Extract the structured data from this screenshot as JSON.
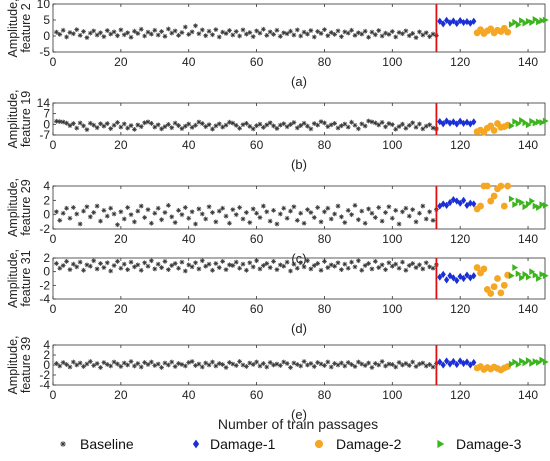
{
  "figure": {
    "xlabel": "Number of  train passages",
    "legend": {
      "placement": "bottom",
      "entries": [
        {
          "label": "Baseline",
          "marker": "star",
          "color": "#333333"
        },
        {
          "label": "Damage-1",
          "marker": "diamond",
          "color": "#1a2fd6"
        },
        {
          "label": "Damage-2",
          "marker": "circle",
          "color": "#f5a623"
        },
        {
          "label": "Damage-3",
          "marker": "triangle-right",
          "color": "#3cb41e"
        }
      ]
    },
    "colors": {
      "baseline": "#333333",
      "damage1": "#1a2fd6",
      "damage2": "#f5a623",
      "damage3": "#3cb41e",
      "divider": "#e01010"
    }
  },
  "chart_data": [
    {
      "type": "scatter",
      "panel": "(a)",
      "ylabel": "Amplitude, feature 2",
      "ylabel_lines": [
        "Amplitude,",
        "feature 2"
      ],
      "xlim": [
        0,
        145
      ],
      "ylim": [
        -5,
        10
      ],
      "xticks": [
        0,
        20,
        40,
        60,
        80,
        100,
        120,
        140
      ],
      "yticks": [
        -5,
        0,
        5,
        10
      ],
      "divider_x": 113,
      "series": [
        {
          "name": "Baseline",
          "x_start": 1,
          "x_end": 113,
          "values": [
            1.2,
            0.5,
            1.8,
            -0.3,
            1.1,
            0.7,
            2.0,
            0.2,
            1.4,
            -0.5,
            0.9,
            1.6,
            0.3,
            1.0,
            -0.2,
            1.7,
            0.6,
            1.3,
            0.1,
            1.9,
            0.4,
            1.0,
            -0.4,
            1.5,
            0.8,
            2.1,
            0.0,
            1.2,
            0.6,
            1.8,
            0.3,
            1.4,
            -0.1,
            2.2,
            0.9,
            1.6,
            0.2,
            1.1,
            2.8,
            0.5,
            1.3,
            3.2,
            0.7,
            1.9,
            0.1,
            1.5,
            0.4,
            2.0,
            -0.3,
            1.2,
            0.8,
            1.7,
            0.3,
            1.4,
            0.0,
            1.9,
            0.6,
            1.1,
            -0.2,
            1.6,
            0.9,
            2.1,
            0.2,
            1.3,
            0.5,
            1.8,
            -0.1,
            1.0,
            0.7,
            1.5,
            0.3,
            1.9,
            0.0,
            1.2,
            0.6,
            1.7,
            -0.3,
            1.4,
            0.8,
            2.0,
            0.1,
            1.1,
            0.5,
            1.6,
            -0.2,
            1.3,
            0.9,
            1.8,
            0.2,
            1.0,
            0.6,
            1.5,
            -0.4,
            1.2,
            0.4,
            1.7,
            0.0,
            0.9,
            0.5,
            1.4,
            -0.3,
            1.1,
            0.7,
            1.6,
            0.1,
            0.8,
            -0.5,
            1.3,
            0.3,
            1.0,
            -0.2,
            0.6,
            0.2
          ]
        },
        {
          "name": "Damage-1",
          "x_start": 114,
          "x_end": 124,
          "values": [
            4.6,
            3.8,
            4.9,
            4.1,
            4.7,
            3.9,
            4.8,
            4.2,
            4.5,
            4.0,
            4.6
          ]
        },
        {
          "name": "Damage-2",
          "x_start": 125,
          "x_end": 134,
          "values": [
            1.0,
            2.0,
            0.8,
            1.6,
            2.2,
            1.0,
            1.8,
            1.4,
            2.4,
            1.2
          ]
        },
        {
          "name": "Damage-3",
          "x_start": 135,
          "x_end": 145,
          "values": [
            3.6,
            4.3,
            3.5,
            4.8,
            4.0,
            4.6,
            4.2,
            5.2,
            4.4,
            4.8,
            5.0
          ]
        }
      ]
    },
    {
      "type": "scatter",
      "panel": "(b)",
      "ylabel": "Amplitude, feature 19",
      "ylabel_lines": [
        "Amplitude,",
        "feature 19"
      ],
      "xlim": [
        0,
        145
      ],
      "ylim": [
        -7,
        14
      ],
      "xticks": [
        0,
        20,
        40,
        60,
        80,
        100,
        120,
        140
      ],
      "yticks": [
        -7,
        0,
        7,
        14
      ],
      "divider_x": 113,
      "series": [
        {
          "name": "Baseline",
          "x_start": 1,
          "x_end": 113,
          "values": [
            2.0,
            1.8,
            1.5,
            0.8,
            -0.8,
            0.5,
            -2.5,
            0.9,
            -1.0,
            -3.5,
            0.7,
            -0.5,
            -2.2,
            0.4,
            -1.2,
            0.5,
            -2.8,
            -0.6,
            1.2,
            -1.8,
            0.3,
            -2.5,
            -0.8,
            -3.3,
            -0.4,
            -1.5,
            1.0,
            1.6,
            0.6,
            -1.8,
            -0.3,
            -3.0,
            -1.5,
            0.0,
            -2.2,
            0.8,
            -0.8,
            -2.8,
            -1.2,
            0.2,
            -2.0,
            -0.6,
            1.5,
            0.5,
            -1.5,
            -0.2,
            -3.1,
            -1.0,
            0.3,
            -1.8,
            -0.5,
            1.4,
            0.8,
            -0.7,
            -2.6,
            -0.2,
            0.6,
            -1.3,
            -3.0,
            -0.9,
            0.1,
            -2.0,
            -0.4,
            1.0,
            -1.0,
            -2.7,
            -0.5,
            0.4,
            -1.6,
            -0.1,
            1.2,
            -2.3,
            -0.8,
            0.7,
            -1.2,
            -3.0,
            0.5,
            -0.5,
            1.8,
            0.9,
            -1.5,
            -0.3,
            0.6,
            -2.4,
            -0.9,
            0.2,
            -1.8,
            1.4,
            -0.6,
            -2.9,
            0.3,
            -1.1,
            2.2,
            1.6,
            0.9,
            -0.4,
            1.3,
            -1.6,
            0.5,
            -0.2,
            -3.2,
            -1.4,
            0.1,
            -2.6,
            -0.7,
            1.0,
            -1.9,
            0.2,
            -3.0,
            -1.2,
            -0.3,
            -2.4,
            -3.0
          ]
        },
        {
          "name": "Damage-1",
          "x_start": 114,
          "x_end": 124,
          "values": [
            1.8,
            0.4,
            2.2,
            0.8,
            1.6,
            0.2,
            2.0,
            0.6,
            1.4,
            0.3,
            1.6
          ]
        },
        {
          "name": "Damage-2",
          "x_start": 125,
          "x_end": 134,
          "values": [
            -4.8,
            -3.8,
            -5.2,
            -2.5,
            -1.0,
            -4.0,
            0.5,
            -2.0,
            -1.5,
            -0.5
          ]
        },
        {
          "name": "Damage-3",
          "x_start": 135,
          "x_end": 145,
          "values": [
            -1.0,
            1.8,
            0.5,
            2.6,
            1.0,
            -0.4,
            2.0,
            0.8,
            1.6,
            1.2,
            2.2
          ]
        }
      ]
    },
    {
      "type": "scatter",
      "panel": "(c)",
      "ylabel": "Amplitude, feature 29",
      "ylabel_lines": [
        "Amplitude,",
        "feature 29"
      ],
      "xlim": [
        0,
        145
      ],
      "ylim": [
        -2,
        4
      ],
      "xticks": [
        0,
        20,
        40,
        60,
        80,
        100,
        120,
        140
      ],
      "yticks": [
        -2,
        0,
        2,
        4
      ],
      "divider_x": 113,
      "series": [
        {
          "name": "Baseline",
          "x_start": 1,
          "x_end": 113,
          "values": [
            0.4,
            -0.8,
            0.2,
            0.9,
            -0.5,
            1.0,
            0.1,
            -1.3,
            0.5,
            1.1,
            -0.3,
            0.3,
            1.2,
            -0.9,
            0.6,
            -0.2,
            0.9,
            0.1,
            -1.4,
            0.4,
            -0.6,
            1.0,
            0.0,
            -1.0,
            0.5,
            1.2,
            -0.4,
            0.7,
            -1.2,
            0.2,
            0.9,
            -0.7,
            0.3,
            1.3,
            -0.3,
            -1.1,
            0.6,
            0.0,
            1.0,
            -0.5,
            0.4,
            -1.3,
            0.8,
            0.1,
            -0.6,
            1.1,
            0.3,
            -1.0,
            0.5,
            0.9,
            -0.2,
            -1.2,
            0.7,
            0.0,
            1.0,
            -0.6,
            0.3,
            -1.1,
            0.8,
            0.2,
            -0.4,
            1.2,
            0.4,
            -0.9,
            0.6,
            -1.3,
            0.1,
            0.9,
            -0.5,
            0.5,
            1.1,
            -0.8,
            0.2,
            -1.2,
            0.7,
            0.3,
            -0.4,
            1.0,
            -1.0,
            0.4,
            0.9,
            -0.6,
            0.1,
            1.2,
            -0.3,
            -1.1,
            0.6,
            0.0,
            1.3,
            -0.7,
            0.5,
            -1.2,
            0.8,
            0.2,
            -0.4,
            1.0,
            -0.9,
            0.3,
            1.1,
            -0.5,
            0.6,
            -1.3,
            0.4,
            0.9,
            -0.2,
            0.7,
            -1.0,
            0.2,
            1.2,
            -0.6,
            0.4,
            -0.8,
            0.7
          ]
        },
        {
          "name": "Damage-1",
          "x_start": 114,
          "x_end": 124,
          "values": [
            1.2,
            1.5,
            1.3,
            1.7,
            2.1,
            1.9,
            1.6,
            2.0,
            1.3,
            1.6,
            1.5
          ]
        },
        {
          "name": "Damage-2",
          "x_start": 125,
          "x_end": 134,
          "values": [
            0.8,
            1.2,
            4.5,
            4.0,
            1.9,
            2.6,
            3.6,
            4.2,
            1.2,
            4.5
          ]
        },
        {
          "name": "Damage-3",
          "x_start": 135,
          "x_end": 145,
          "values": [
            2.2,
            1.4,
            1.9,
            1.7,
            1.1,
            1.5,
            1.9,
            1.2,
            1.0,
            1.4,
            1.3
          ]
        }
      ]
    },
    {
      "type": "scatter",
      "panel": "(d)",
      "ylabel": "Amplitude, feature 31",
      "ylabel_lines": [
        "Amplitude,",
        "feature 31"
      ],
      "xlim": [
        0,
        145
      ],
      "ylim": [
        -4,
        2
      ],
      "xticks": [
        0,
        20,
        40,
        60,
        80,
        100,
        120,
        140
      ],
      "yticks": [
        -4,
        -2,
        0,
        2
      ],
      "divider_x": 113,
      "series": [
        {
          "name": "Baseline",
          "x_start": 1,
          "x_end": 113,
          "values": [
            1.2,
            0.5,
            0.9,
            1.5,
            0.3,
            1.1,
            0.7,
            1.4,
            0.2,
            1.0,
            0.8,
            1.6,
            0.4,
            1.2,
            0.6,
            1.3,
            0.1,
            0.9,
            1.5,
            0.5,
            1.1,
            0.3,
            1.4,
            0.7,
            1.0,
            0.2,
            1.3,
            0.8,
            1.6,
            0.4,
            1.1,
            0.6,
            1.5,
            0.3,
            0.9,
            1.2,
            0.5,
            1.4,
            0.1,
            1.0,
            0.7,
            1.3,
            0.4,
            1.6,
            0.8,
            1.1,
            0.2,
            1.2,
            0.6,
            1.5,
            0.3,
            1.0,
            0.9,
            1.4,
            0.5,
            1.1,
            0.2,
            1.3,
            0.7,
            1.6,
            0.4,
            0.9,
            1.2,
            0.6,
            1.5,
            0.3,
            1.0,
            0.8,
            1.4,
            0.1,
            1.1,
            0.5,
            1.3,
            0.7,
            1.6,
            0.4,
            0.9,
            1.2,
            0.2,
            1.5,
            0.6,
            1.0,
            0.8,
            1.3,
            0.3,
            1.1,
            0.5,
            1.4,
            0.7,
            1.6,
            0.2,
            0.9,
            1.2,
            0.4,
            1.5,
            0.6,
            1.0,
            0.3,
            1.3,
            0.8,
            1.1,
            0.5,
            1.4,
            0.2,
            0.9,
            1.2,
            0.6,
            1.0,
            0.4,
            1.3,
            0.7,
            0.5,
            1.0
          ]
        },
        {
          "name": "Damage-1",
          "x_start": 114,
          "x_end": 124,
          "values": [
            -0.8,
            -0.4,
            -1.2,
            -0.6,
            -0.9,
            -1.3,
            -0.7,
            -1.0,
            -0.5,
            -0.9,
            -0.6
          ]
        },
        {
          "name": "Damage-2",
          "x_start": 125,
          "x_end": 134,
          "values": [
            0.6,
            -0.2,
            0.4,
            -2.6,
            -3.2,
            -2.2,
            -1.0,
            -3.1,
            -2.0,
            -0.5
          ]
        },
        {
          "name": "Damage-3",
          "x_start": 135,
          "x_end": 145,
          "values": [
            -0.6,
            0.6,
            -0.3,
            -0.9,
            -0.4,
            -0.8,
            0.0,
            -0.5,
            -1.0,
            -0.4,
            -0.6
          ]
        }
      ]
    },
    {
      "type": "scatter",
      "panel": "(e)",
      "ylabel": "Amplitude, feature 39",
      "ylabel_lines": [
        "Amplitude,",
        "feature 39"
      ],
      "xlim": [
        0,
        145
      ],
      "ylim": [
        -4,
        4
      ],
      "xticks": [
        0,
        20,
        40,
        60,
        80,
        100,
        120,
        140
      ],
      "yticks": [
        -4,
        -2,
        0,
        2,
        4
      ],
      "divider_x": 113,
      "series": [
        {
          "name": "Baseline",
          "x_start": 1,
          "x_end": 113,
          "values": [
            0.3,
            -0.2,
            0.5,
            0.1,
            -0.4,
            0.6,
            0.0,
            0.4,
            -0.3,
            0.2,
            0.7,
            -0.1,
            0.3,
            -0.5,
            0.5,
            0.1,
            -0.2,
            0.6,
            0.2,
            -0.3,
            0.4,
            0.0,
            0.7,
            -0.2,
            0.3,
            -0.4,
            0.5,
            0.1,
            0.6,
            -0.1,
            0.2,
            -0.5,
            0.4,
            0.0,
            0.6,
            -0.3,
            0.3,
            0.1,
            -0.2,
            0.5,
            0.7,
            -0.1,
            0.2,
            -0.4,
            0.4,
            0.0,
            0.6,
            -0.2,
            0.3,
            0.1,
            -0.5,
            0.5,
            0.2,
            -0.1,
            0.7,
            0.0,
            -0.3,
            0.4,
            0.1,
            0.6,
            -0.2,
            0.3,
            -0.4,
            0.5,
            0.0,
            0.2,
            -0.1,
            0.6,
            0.3,
            -0.5,
            0.4,
            0.1,
            -0.2,
            0.7,
            0.0,
            0.3,
            -0.3,
            0.5,
            0.2,
            -0.1,
            0.6,
            -0.4,
            0.3,
            0.0,
            0.4,
            -0.2,
            0.5,
            0.1,
            -0.3,
            0.6,
            0.2,
            -0.1,
            0.4,
            -0.5,
            0.3,
            0.0,
            0.7,
            -0.2,
            0.2,
            0.1,
            -0.4,
            0.5,
            0.0,
            0.3,
            -0.1,
            0.6,
            -0.3,
            0.2,
            0.4,
            -0.2,
            0.1,
            -0.4,
            0.3
          ]
        },
        {
          "name": "Damage-1",
          "x_start": 114,
          "x_end": 124,
          "values": [
            0.6,
            0.0,
            0.8,
            0.2,
            0.7,
            0.1,
            0.8,
            0.3,
            0.6,
            0.0,
            0.5
          ]
        },
        {
          "name": "Damage-2",
          "x_start": 125,
          "x_end": 134,
          "values": [
            -0.6,
            -0.3,
            -0.9,
            -0.5,
            -0.8,
            -0.4,
            -0.7,
            -1.0,
            -0.6,
            -0.3
          ]
        },
        {
          "name": "Damage-3",
          "x_start": 135,
          "x_end": 145,
          "values": [
            0.2,
            0.6,
            0.1,
            0.8,
            0.4,
            0.9,
            0.3,
            0.7,
            0.5,
            1.0,
            0.6
          ]
        }
      ]
    }
  ]
}
